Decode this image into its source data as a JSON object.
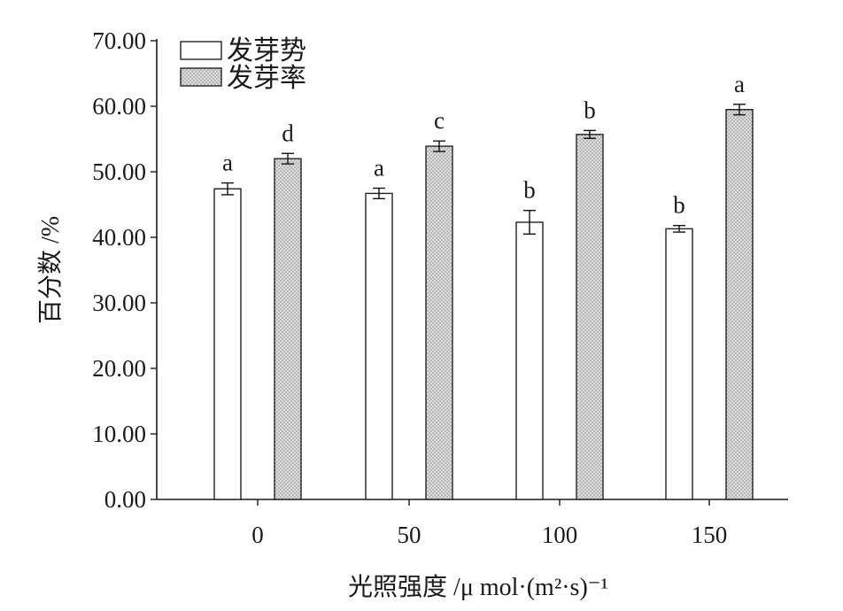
{
  "chart_data": {
    "type": "bar",
    "title": "",
    "xlabel": "光照强度 /μ mol·(m²·s)⁻¹",
    "ylabel": "百分数 /%",
    "categories": [
      "0",
      "50",
      "100",
      "150"
    ],
    "ylim": [
      0,
      70
    ],
    "yticks": [
      "0.00",
      "10.00",
      "20.00",
      "30.00",
      "40.00",
      "50.00",
      "60.00",
      "70.00"
    ],
    "grid": false,
    "legend_position": "top-left",
    "series": [
      {
        "name": "发芽势",
        "values": [
          47.4,
          46.7,
          42.3,
          41.3
        ],
        "errors": [
          0.9,
          0.8,
          1.8,
          0.5
        ],
        "labels": [
          "a",
          "a",
          "b",
          "b"
        ],
        "fill": "white"
      },
      {
        "name": "发芽率",
        "values": [
          52.0,
          53.9,
          55.7,
          59.5
        ],
        "errors": [
          0.8,
          0.8,
          0.6,
          0.8
        ],
        "labels": [
          "d",
          "c",
          "b",
          "a"
        ],
        "fill": "dotted-gray"
      }
    ],
    "colors": {
      "axis": "#1a1a1a",
      "bar_stroke": "#222222",
      "bar_white": "#ffffff",
      "bar_dot": "#c8c8c8"
    }
  }
}
